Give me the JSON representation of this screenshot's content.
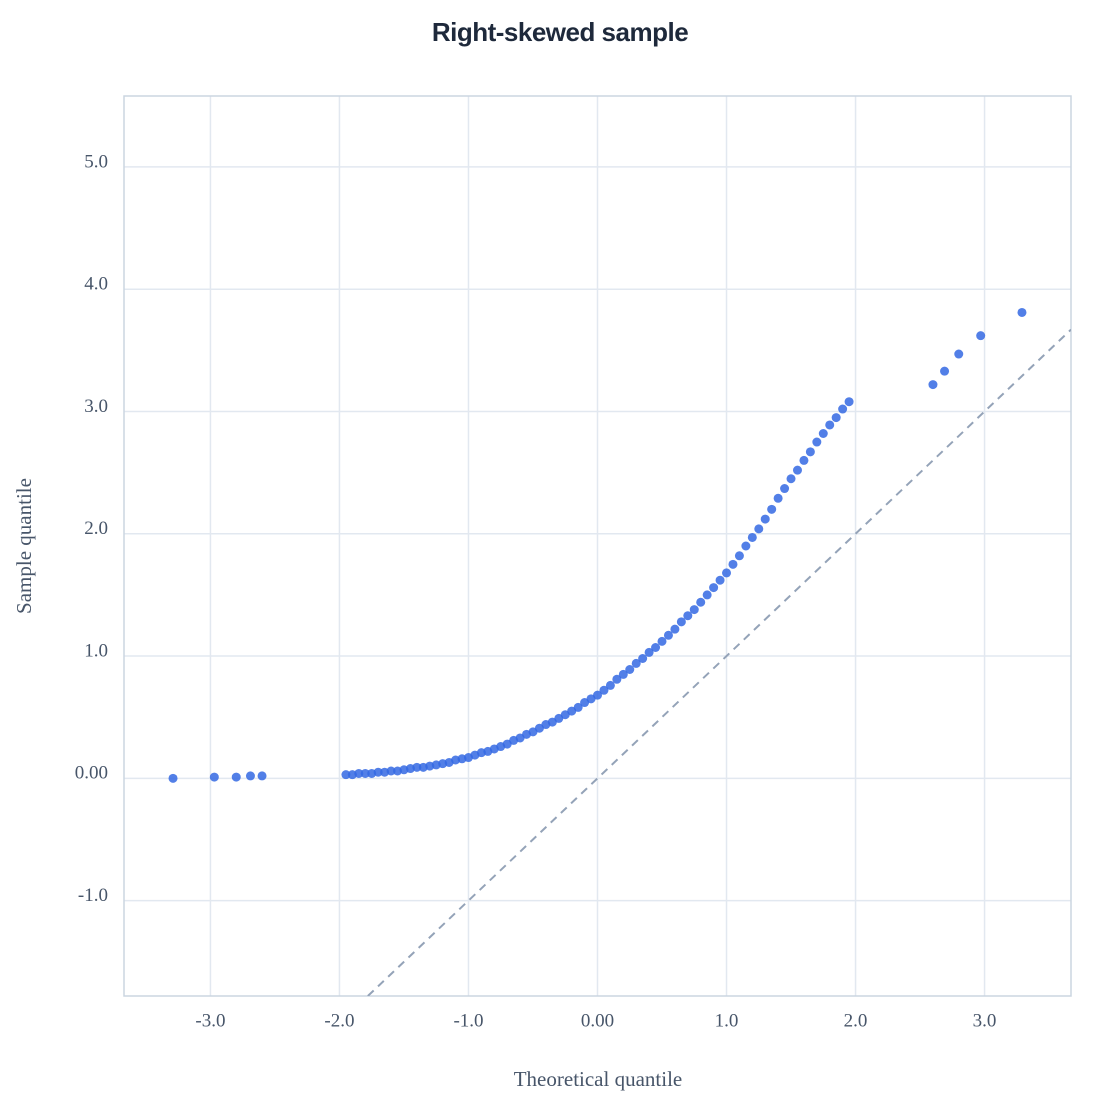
{
  "chart_data": {
    "type": "scatter",
    "title": "Right-skewed sample",
    "x_label": "Theoretical quantile",
    "y_label": "Sample quantile",
    "color": "#3468e3",
    "grid": true,
    "reference_line": true,
    "xlim": [
      -3.67,
      3.67
    ],
    "ylim": [
      -1.78,
      5.58
    ],
    "xticks": [
      {
        "value": -3,
        "label": "-3.0"
      },
      {
        "value": -2,
        "label": "-2.0"
      },
      {
        "value": -1,
        "label": "-1.0"
      },
      {
        "value": 0,
        "label": "0.00"
      },
      {
        "value": 1,
        "label": "1.0"
      },
      {
        "value": 2,
        "label": "2.0"
      },
      {
        "value": 3,
        "label": "3.0"
      }
    ],
    "yticks": [
      {
        "value": -1,
        "label": "-1.0"
      },
      {
        "value": 0,
        "label": "0.00"
      },
      {
        "value": 1,
        "label": "1.0"
      },
      {
        "value": 2,
        "label": "2.0"
      },
      {
        "value": 3,
        "label": "3.0"
      },
      {
        "value": 4,
        "label": "4.0"
      },
      {
        "value": 5,
        "label": "5.0"
      }
    ],
    "x": [
      -3.29,
      -2.97,
      -2.8,
      -2.69,
      -2.6,
      -1.95,
      -1.9,
      -1.85,
      -1.8,
      -1.75,
      -1.7,
      -1.65,
      -1.6,
      -1.55,
      -1.5,
      -1.45,
      -1.4,
      -1.35,
      -1.3,
      -1.25,
      -1.2,
      -1.15,
      -1.1,
      -1.05,
      -1.0,
      -0.95,
      -0.9,
      -0.85,
      -0.8,
      -0.75,
      -0.7,
      -0.65,
      -0.6,
      -0.55,
      -0.5,
      -0.45,
      -0.4,
      -0.35,
      -0.3,
      -0.25,
      -0.2,
      -0.15,
      -0.1,
      -0.05,
      0,
      0.05,
      0.1,
      0.15,
      0.2,
      0.25,
      0.3,
      0.35,
      0.4,
      0.45,
      0.5,
      0.55,
      0.6,
      0.65,
      0.7,
      0.75,
      0.8,
      0.85,
      0.9,
      0.95,
      1.0,
      1.05,
      1.1,
      1.15,
      1.2,
      1.25,
      1.3,
      1.35,
      1.4,
      1.45,
      1.5,
      1.55,
      1.6,
      1.65,
      1.7,
      1.75,
      1.8,
      1.85,
      1.9,
      1.95,
      2.6,
      2.69,
      2.8,
      2.97,
      3.29
    ],
    "values": [
      0.0,
      0.01,
      0.01,
      0.02,
      0.02,
      0.03,
      0.03,
      0.04,
      0.04,
      0.04,
      0.05,
      0.05,
      0.06,
      0.06,
      0.07,
      0.08,
      0.09,
      0.09,
      0.1,
      0.11,
      0.12,
      0.13,
      0.15,
      0.16,
      0.17,
      0.19,
      0.21,
      0.22,
      0.24,
      0.26,
      0.28,
      0.31,
      0.33,
      0.36,
      0.38,
      0.41,
      0.44,
      0.46,
      0.49,
      0.52,
      0.55,
      0.58,
      0.62,
      0.65,
      0.68,
      0.72,
      0.76,
      0.81,
      0.85,
      0.89,
      0.94,
      0.98,
      1.03,
      1.07,
      1.12,
      1.17,
      1.22,
      1.28,
      1.33,
      1.38,
      1.44,
      1.5,
      1.56,
      1.62,
      1.68,
      1.75,
      1.82,
      1.9,
      1.97,
      2.04,
      2.12,
      2.2,
      2.29,
      2.37,
      2.45,
      2.52,
      2.6,
      2.67,
      2.75,
      2.82,
      2.89,
      2.95,
      3.02,
      3.08,
      3.22,
      3.33,
      3.47,
      3.62,
      3.81
    ]
  }
}
